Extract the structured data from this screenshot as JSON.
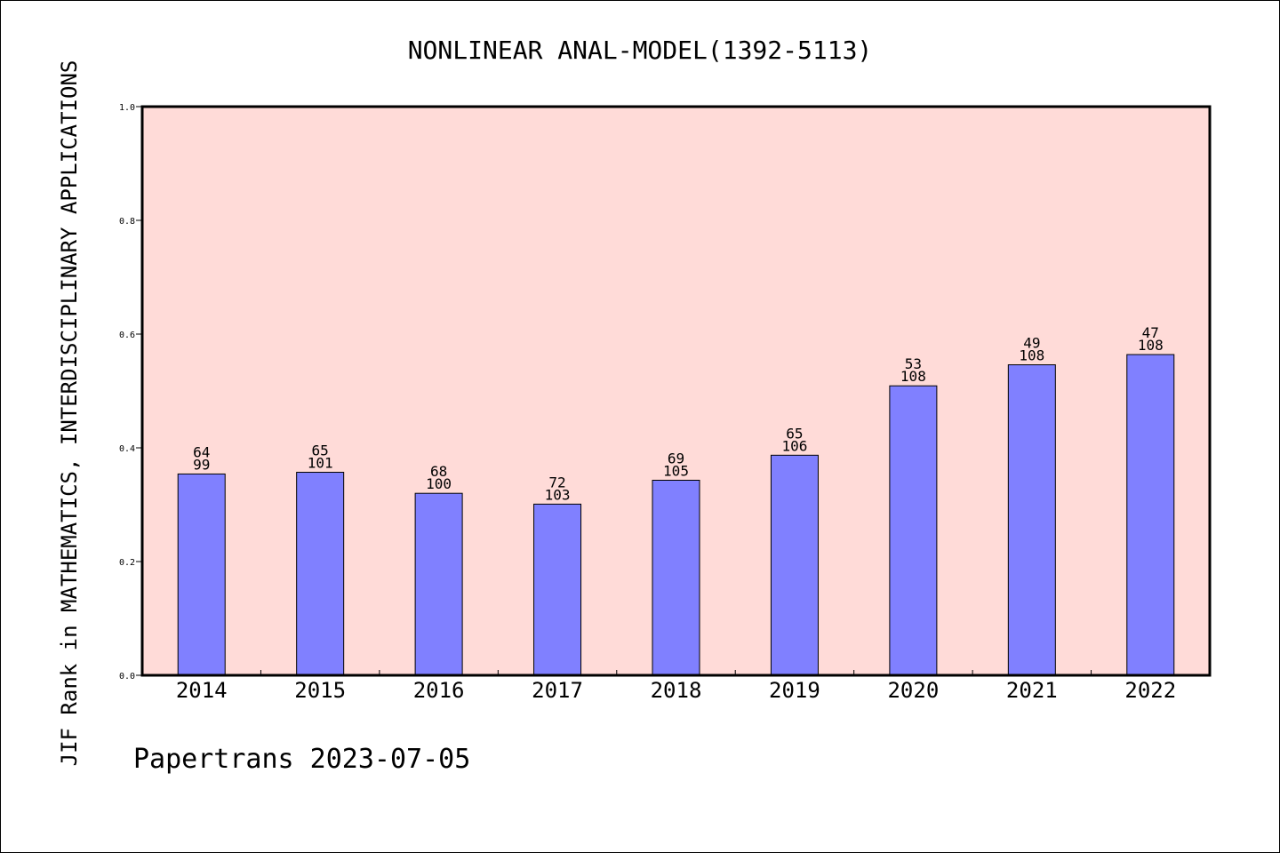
{
  "chart_data": {
    "type": "bar",
    "title": "NONLINEAR ANAL-MODEL(1392-5113)",
    "ylabel": "JIF Rank in MATHEMATICS, INTERDISCIPLINARY APPLICATIONS",
    "xlabel": "",
    "footer": "Papertrans 2023-07-05",
    "ylim": [
      0,
      1.0
    ],
    "yticks": [
      "0.0",
      "0.2",
      "0.4",
      "0.6",
      "0.8",
      "1.0"
    ],
    "categories": [
      "2014",
      "2015",
      "2016",
      "2017",
      "2018",
      "2019",
      "2020",
      "2021",
      "2022"
    ],
    "values": [
      0.354,
      0.357,
      0.32,
      0.301,
      0.343,
      0.387,
      0.509,
      0.546,
      0.564
    ],
    "rank_labels": [
      "64",
      "65",
      "68",
      "72",
      "69",
      "65",
      "53",
      "49",
      "47"
    ],
    "total_labels": [
      "99",
      "101",
      "100",
      "103",
      "105",
      "106",
      "108",
      "108",
      "108"
    ],
    "grid": false,
    "colors": {
      "plot_bg": "#ffdbd8",
      "bar": "#8080ff",
      "bar_edge": "#000000"
    }
  }
}
